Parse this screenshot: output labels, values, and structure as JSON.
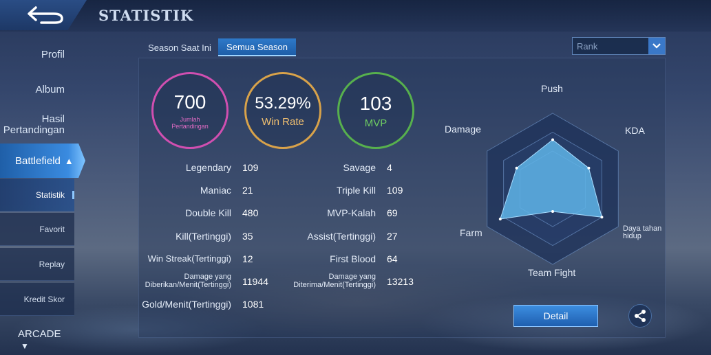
{
  "header": {
    "title": "STATISTIK",
    "back_icon": "back-arrow-icon"
  },
  "sidebar": {
    "items": [
      {
        "label": "Profil"
      },
      {
        "label": "Album"
      },
      {
        "label": "Hasil Pertandingan"
      }
    ],
    "battlefield": {
      "label": "Battlefield",
      "icon": "chevron-up-icon"
    },
    "sub_items": [
      {
        "label": "Statistik",
        "active": true
      },
      {
        "label": "Favorit"
      },
      {
        "label": "Replay"
      },
      {
        "label": "Kredit Skor"
      }
    ],
    "arcade": {
      "label": "ARCADE",
      "icon": "chevron-down-icon"
    }
  },
  "tabs": [
    {
      "label": "Season Saat Ini"
    },
    {
      "label": "Semua Season",
      "active": true
    }
  ],
  "filter": {
    "value": "Rank"
  },
  "summary": {
    "matches": {
      "value": "700",
      "label": "Jumlah Pertandingan"
    },
    "win_rate": {
      "value": "53.29%",
      "label": "Win Rate"
    },
    "mvp": {
      "value": "103",
      "label": "MVP"
    }
  },
  "stats_left": [
    {
      "label": "Legendary",
      "value": "109"
    },
    {
      "label": "Maniac",
      "value": "21"
    },
    {
      "label": "Double Kill",
      "value": "480"
    },
    {
      "label": "Kill(Tertinggi)",
      "value": "35"
    },
    {
      "label": "Win Streak(Tertinggi)",
      "value": "12"
    },
    {
      "label": "Damage yang Diberikan/Menit(Tertinggi)",
      "value": "11944"
    },
    {
      "label": "Gold/Menit(Tertinggi)",
      "value": "1081"
    }
  ],
  "stats_right": [
    {
      "label": "Savage",
      "value": "4"
    },
    {
      "label": "Triple Kill",
      "value": "109"
    },
    {
      "label": "MVP-Kalah",
      "value": "69"
    },
    {
      "label": "Assist(Tertinggi)",
      "value": "27"
    },
    {
      "label": "First Blood",
      "value": "64"
    },
    {
      "label": "Damage yang Diterima/Menit(Tertinggi)",
      "value": "13213"
    }
  ],
  "radar": {
    "axes": [
      "Push",
      "KDA",
      "Daya tahan hidup",
      "Team Fight",
      "Farm",
      "Damage"
    ],
    "values": [
      0.65,
      0.55,
      0.75,
      0.3,
      0.8,
      0.55
    ],
    "fill_color": "#5fb4e8"
  },
  "actions": {
    "detail_label": "Detail",
    "share_icon": "share-icon"
  }
}
